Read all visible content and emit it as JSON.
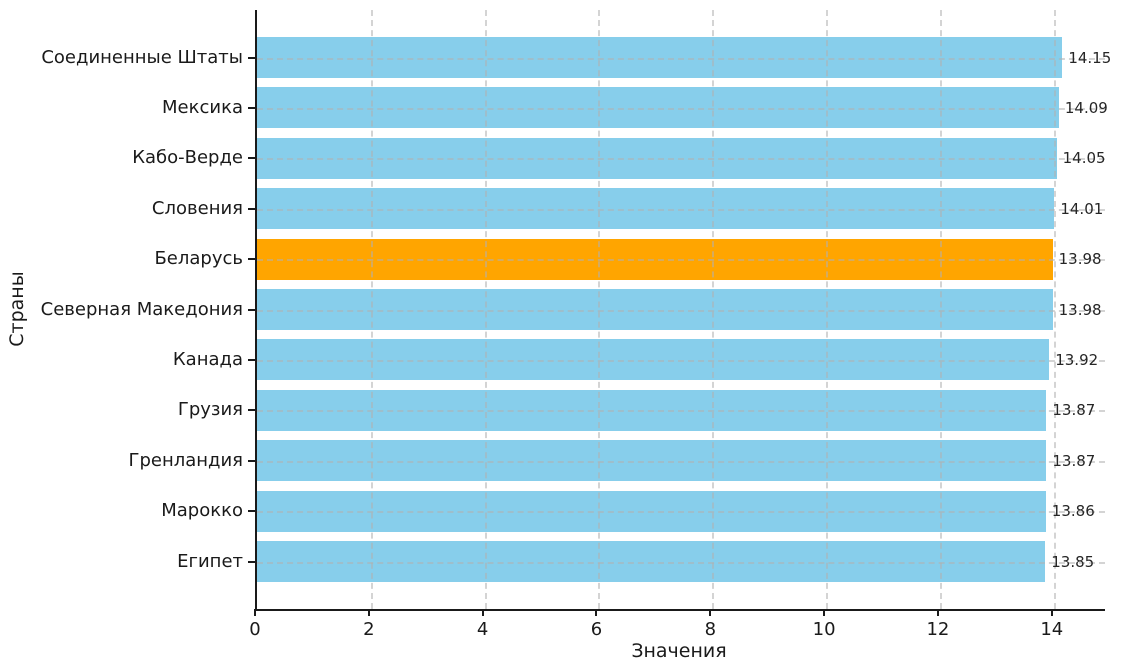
{
  "chart_data": {
    "type": "bar",
    "orientation": "horizontal",
    "title": "",
    "xlabel": "Значения",
    "ylabel": "Страны",
    "categories": [
      "Соединенные Штаты",
      "Мексика",
      "Кабо-Верде",
      "Словения",
      "Беларусь",
      "Северная Македония",
      "Канада",
      "Грузия",
      "Гренландия",
      "Марокко",
      "Египет"
    ],
    "values": [
      14.15,
      14.09,
      14.05,
      14.01,
      13.98,
      13.98,
      13.92,
      13.87,
      13.87,
      13.86,
      13.85
    ],
    "value_labels": [
      "14.15",
      "14.09",
      "14.05",
      "14.01",
      "13.98",
      "13.98",
      "13.92",
      "13.87",
      "13.87",
      "13.86",
      "13.85"
    ],
    "highlight_index": 4,
    "highlighted_category": "Беларусь",
    "x_ticks": [
      0,
      2,
      4,
      6,
      8,
      10,
      12,
      14
    ],
    "x_tick_labels": [
      "0",
      "2",
      "4",
      "6",
      "8",
      "10",
      "12",
      "14"
    ],
    "xlim": [
      0,
      14.9
    ],
    "grid": true,
    "grid_style": "dashed",
    "legend": false,
    "colors": {
      "bar": "#87CEEB",
      "highlight": "#FFA500",
      "grid": "#b0b0b0",
      "text": "#1a1a1a",
      "spine": "#1a1a1a",
      "background": "#ffffff"
    }
  }
}
